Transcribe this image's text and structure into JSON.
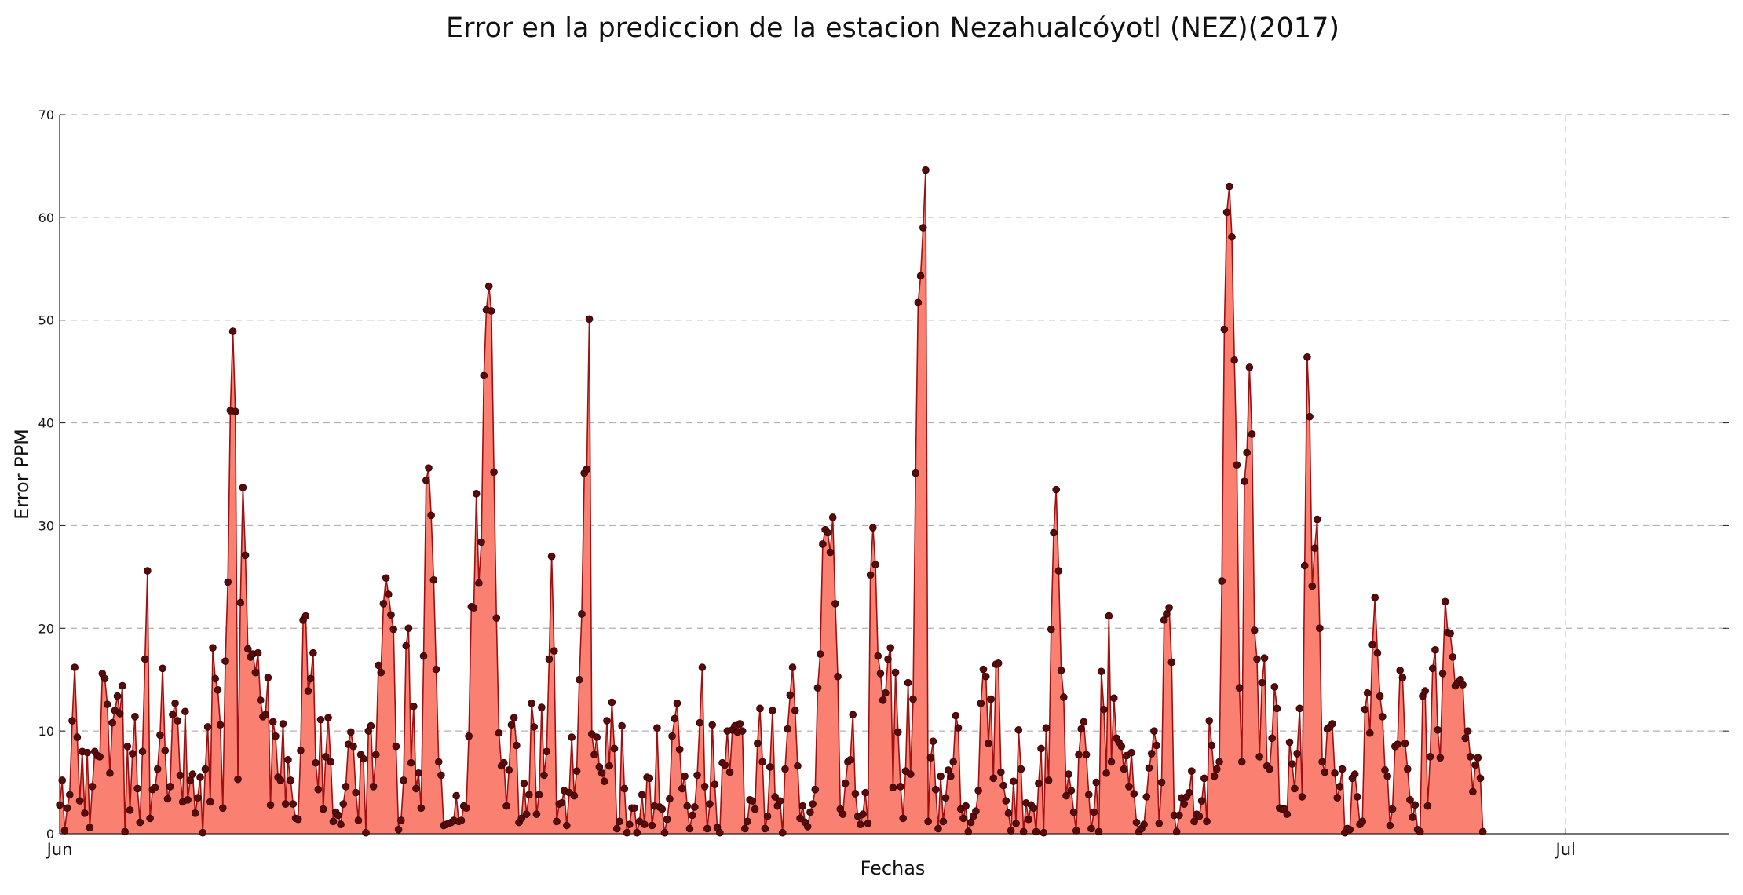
{
  "chart_data": {
    "type": "area",
    "title": "Error en la prediccion de la estacion Nezahualcóyotl (NEZ)(2017)",
    "xlabel": "Fechas",
    "ylabel": "Error PPM",
    "ylim": [
      0,
      70
    ],
    "yticks": [
      "0",
      "10",
      "20",
      "30",
      "40",
      "50",
      "60",
      "70"
    ],
    "xlim_hours": [
      0,
      798
    ],
    "xticks": [
      {
        "label": "Jun",
        "hour": 0
      },
      {
        "label": "Jul",
        "hour": 720
      }
    ],
    "grid": true,
    "colors": {
      "fill": "#fa8072",
      "line": "#a01010",
      "marker": "#5a0a0a",
      "grid": "#b0b0b0"
    },
    "series": [
      {
        "values": [
          2.8,
          5.2,
          0.3,
          2.5,
          3.8,
          11,
          16.2,
          9.4,
          3.2,
          8,
          2,
          7.9,
          0.6,
          4.6,
          8,
          7.6,
          7.5,
          15.6,
          15.1,
          12.6,
          5.9,
          10.8,
          12,
          13.4,
          11.7,
          14.4,
          0.2,
          8.5,
          2.3,
          7.8,
          11.4,
          4.4,
          1.1,
          8,
          17,
          25.6,
          1.5,
          4.3,
          4.5,
          6.3,
          9.6,
          16.1,
          8.1,
          3.4,
          4.6,
          11.6,
          12.7,
          11,
          5.7,
          3.1,
          11.9,
          3.3,
          5.2,
          5.8,
          2,
          3.5,
          5.5,
          0.1,
          6.3,
          10.4,
          3.1,
          18.1,
          15.1,
          14,
          10.6,
          2.5,
          16.8,
          24.5,
          41.2,
          48.9,
          41.1,
          5.3,
          22.5,
          33.7,
          27.1,
          18,
          17.2,
          17.5,
          15.7,
          17.6,
          13,
          11.4,
          11.6,
          15.2,
          2.8,
          10.9,
          9.5,
          5.5,
          5.2,
          10.7,
          2.9,
          7.2,
          5.2,
          2.9,
          1.5,
          1.4,
          8.1,
          20.8,
          21.2,
          13.9,
          15.1,
          17.6,
          6.9,
          4.3,
          11.1,
          2.4,
          7.5,
          11.3,
          7,
          1.2,
          2.1,
          1.8,
          0.9,
          2.9,
          4.6,
          8.7,
          9.9,
          8.5,
          4,
          1.3,
          7.7,
          7.3,
          0.1,
          10,
          10.5,
          4.6,
          7.7,
          16.4,
          15.7,
          22.4,
          24.9,
          23.3,
          21.3,
          19.9,
          8.5,
          0.4,
          1.3,
          5.2,
          18.3,
          20,
          6.9,
          12.4,
          4.4,
          5.9,
          2.5,
          17.3,
          34.4,
          35.6,
          31,
          24.7,
          16,
          7,
          5.7,
          0.8,
          0.9,
          1,
          1.1,
          1.3,
          3.7,
          1.2,
          1.3,
          2.7,
          2.5,
          9.5,
          22.1,
          22,
          33.1,
          24.4,
          28.4,
          44.6,
          51,
          53.3,
          50.9,
          35.2,
          21,
          9.8,
          6.6,
          6.9,
          2.7,
          6.2,
          10.6,
          11.3,
          8.6,
          1.1,
          1.5,
          4.9,
          1.9,
          3.8,
          12.7,
          10.4,
          1.9,
          3.8,
          12.3,
          5.7,
          8,
          17,
          27,
          17.8,
          1.2,
          2.9,
          3,
          4.2,
          0.8,
          4,
          9.4,
          3.7,
          6.1,
          15,
          21.4,
          35.1,
          35.5,
          50.1,
          9.7,
          7.7,
          9.4,
          6.5,
          5.9,
          5.1,
          11,
          6.6,
          12.8,
          8.3,
          0.5,
          1.2,
          10.5,
          4.4,
          0.1,
          0.9,
          2.5,
          2.5,
          0.1,
          1.2,
          3.8,
          0.9,
          5.5,
          5.4,
          0.8,
          2.7,
          10.3,
          2.6,
          2.4,
          0.1,
          1.4,
          3.4,
          9.5,
          11.2,
          12.7,
          8.2,
          4.4,
          5.6,
          2.7,
          0.5,
          1.8,
          2.6,
          5.7,
          10.8,
          16.2,
          4.6,
          0.5,
          2.9,
          10.6,
          4.8,
          0.6,
          0.1,
          6.9,
          6.7,
          10,
          6,
          10.1,
          10.5,
          9.9,
          10.7,
          10,
          0.5,
          1.2,
          3.3,
          3.2,
          2.4,
          8.8,
          12.2,
          7,
          0.5,
          1.7,
          6.5,
          12,
          3.6,
          2.7,
          3.2,
          0.1,
          6.3,
          10.2,
          13.5,
          16.2,
          12,
          6.6,
          1.5,
          2.7,
          1.1,
          0.7,
          2.1,
          2.9,
          4.3,
          14.2,
          17.5,
          28.2,
          29.6,
          29.3,
          27.4,
          30.8,
          22.4,
          15.3,
          2.4,
          1.9,
          4.9,
          7,
          7.2,
          11.6,
          3.9,
          1.7,
          0.9,
          1.9,
          4,
          1,
          25.2,
          29.8,
          26.2,
          17.3,
          15.6,
          13,
          13.7,
          17,
          18.1,
          4.5,
          15.7,
          9.9,
          4.6,
          1.5,
          6.1,
          14.7,
          5.8,
          13.1,
          35.1,
          51.7,
          54.3,
          59,
          64.6,
          1.2,
          7.4,
          9,
          4.3,
          0.5,
          5.6,
          1.2,
          3.5,
          6.2,
          5.6,
          7,
          11.5,
          10.3,
          2.4,
          1.5,
          2.7,
          0.2,
          1.1,
          1.7,
          2.2,
          4.2,
          12.7,
          16,
          15.3,
          8.8,
          13.1,
          5.4,
          16.5,
          16.6,
          6,
          4.7,
          3.2,
          2,
          0.3,
          5.1,
          1,
          10.1,
          6.3,
          0.2,
          3,
          1.4,
          2.8,
          2.5,
          0.2,
          4.9,
          8.3,
          0.1,
          10.3,
          5.2,
          19.9,
          29.3,
          33.5,
          25.6,
          15.9,
          13.3,
          3.7,
          5.8,
          4.2,
          2.1,
          0.3,
          7.7,
          10.2,
          10.9,
          7.7,
          3.8,
          0.5,
          2.1,
          5,
          0.2,
          15.8,
          12.1,
          5.9,
          21.2,
          7,
          13.2,
          9.3,
          8.9,
          8.5,
          6.3,
          7.6,
          4.6,
          7.9,
          3.9,
          1.1,
          0.2,
          0.5,
          0.9,
          3.6,
          6.4,
          7.8,
          10,
          8.6,
          1,
          5,
          20.8,
          21.4,
          22,
          16.7,
          1.8,
          0.2,
          1.8,
          3.5,
          2.9,
          3.6,
          4,
          6.1,
          1.2,
          1.9,
          1.7,
          3.2,
          5.4,
          1.2,
          11,
          8.6,
          5.6,
          6.3,
          7,
          24.6,
          49.1,
          60.5,
          63,
          58.1,
          46.1,
          35.9,
          14.2,
          7,
          34.3,
          37.1,
          45.4,
          38.9,
          19.8,
          17,
          7.5,
          14.7,
          17.1,
          6.6,
          6.3,
          9.3,
          14.3,
          12.2,
          2.5,
          2.4,
          2.4,
          1.9,
          8.9,
          6.8,
          4.4,
          7.8,
          12.2,
          3.6,
          26.1,
          46.4,
          40.6,
          24.1,
          27.8,
          30.6,
          20,
          7,
          6,
          10.2,
          10.4,
          10.7,
          5.9,
          3.5,
          4.6,
          6.3,
          0.1,
          0.5,
          0.4,
          5.4,
          5.8,
          3.6,
          0.9,
          1.2,
          12.1,
          13.7,
          9.8,
          18.4,
          23,
          17.6,
          13.4,
          11.4,
          6.2,
          5.6,
          0.8,
          2.4,
          8.5,
          8.7,
          15.9,
          15.2,
          8.8,
          6.3,
          3.3,
          1.6,
          2.8,
          0.4,
          0.2,
          13.4,
          13.9,
          2.7,
          7.5,
          16.1,
          17.9,
          10.1,
          7.4,
          15.6,
          22.6,
          19.6,
          19.5,
          17.2,
          14.4,
          14.7,
          15,
          14.5,
          9.3,
          10,
          7.5,
          4.1,
          6.7,
          7.4,
          5.4,
          0.2
        ]
      }
    ]
  }
}
